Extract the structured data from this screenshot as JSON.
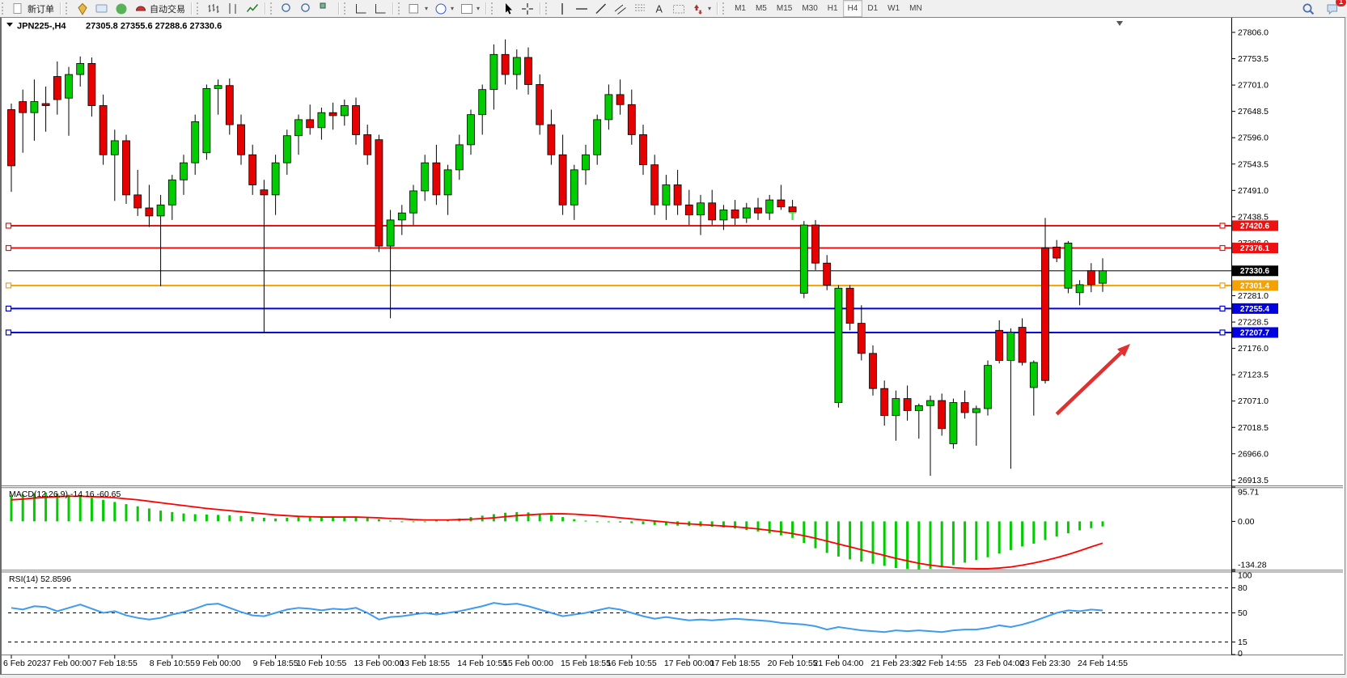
{
  "toolbar": {
    "new_order_label": "新订单",
    "autotrade_label": "自动交易",
    "groups": [
      [
        {
          "name": "new-order-button",
          "icon": "new-order-icon",
          "label_key": "new_order_label"
        }
      ],
      [
        {
          "name": "market-button",
          "icon": "market-icon"
        },
        {
          "name": "community-button",
          "icon": "community-icon"
        },
        {
          "name": "signals-button",
          "icon": "signals-icon"
        },
        {
          "name": "autotrade-button",
          "icon": "autotrade-icon",
          "label_key": "autotrade_label"
        }
      ],
      [
        {
          "name": "bar-chart-button",
          "icon": "bar-chart-icon"
        },
        {
          "name": "candlestick-chart-button",
          "icon": "candle-chart-icon"
        },
        {
          "name": "line-chart-button",
          "icon": "line-chart-icon"
        }
      ],
      [
        {
          "name": "zoom-in-button",
          "icon": "zoom-in-icon"
        },
        {
          "name": "zoom-out-button",
          "icon": "zoom-out-icon"
        },
        {
          "name": "tile-windows-button",
          "icon": "tile-windows-icon"
        }
      ],
      [
        {
          "name": "auto-scroll-button",
          "icon": "auto-scroll-icon"
        },
        {
          "name": "chart-shift-button",
          "icon": "chart-shift-icon"
        }
      ],
      [
        {
          "name": "indicators-button",
          "icon": "indicators-icon",
          "dropdown": true
        },
        {
          "name": "periods-button",
          "icon": "clock-icon",
          "dropdown": true
        },
        {
          "name": "templates-button",
          "icon": "template-icon",
          "dropdown": true
        }
      ],
      [
        {
          "name": "cursor-button",
          "icon": "cursor-icon"
        },
        {
          "name": "crosshair-button",
          "icon": "crosshair-icon"
        }
      ],
      [
        {
          "name": "vertical-line-button",
          "icon": "vertical-line-icon"
        },
        {
          "name": "horizontal-line-button",
          "icon": "horizontal-line-icon"
        },
        {
          "name": "trendline-button",
          "icon": "trendline-icon"
        },
        {
          "name": "channel-button",
          "icon": "channel-icon"
        },
        {
          "name": "fibonacci-button",
          "icon": "fibonacci-icon"
        },
        {
          "name": "text-button",
          "icon": "text-icon"
        },
        {
          "name": "text-label-button",
          "icon": "label-icon"
        },
        {
          "name": "arrows-button",
          "icon": "arrows-icon",
          "dropdown": true
        }
      ]
    ],
    "timeframes": [
      "M1",
      "M5",
      "M15",
      "M30",
      "H1",
      "H4",
      "D1",
      "W1",
      "MN"
    ],
    "active_timeframe": "H4",
    "notification_count": "1"
  },
  "chart": {
    "title_symbol": "JPN225-,H4",
    "title_ohlc": "27305.8 27355.6 27288.6 27330.6"
  },
  "chart_data": {
    "type": "candlestick",
    "symbol": "JPN225-",
    "timeframe": "H4",
    "current": {
      "open": "27305.8",
      "high": "27355.6",
      "low": "27288.6",
      "close": "27330.6"
    },
    "price_axis_ticks": [
      "27806.0",
      "27753.5",
      "27701.0",
      "27648.5",
      "27596.0",
      "27543.5",
      "27491.0",
      "27438.5",
      "27386.0",
      "27281.0",
      "27228.5",
      "27176.0",
      "27123.5",
      "27071.0",
      "27018.5",
      "26966.0",
      "26913.5"
    ],
    "hlines": [
      {
        "price": 27420.6,
        "label": "27420.6",
        "color": "#ee1111",
        "width": 2,
        "anchors": true
      },
      {
        "price": 27376.1,
        "label": "27376.1",
        "color": "#ee1111",
        "width": 2,
        "anchors": true
      },
      {
        "price": 27330.6,
        "label": "27330.6",
        "color": "#000000",
        "width": 1,
        "anchors": false
      },
      {
        "price": 27301.4,
        "label": "27301.4",
        "color": "#f5a100",
        "width": 2,
        "anchors": true
      },
      {
        "price": 27255.4,
        "label": "27255.4",
        "color": "#0000e0",
        "width": 2,
        "anchors": true
      },
      {
        "price": 27207.7,
        "label": "27207.7",
        "color": "#0000e0",
        "width": 2,
        "anchors": true
      }
    ],
    "up_color": "#00cc00",
    "down_color": "#e60000",
    "candles": [
      [
        27652,
        27664,
        27488,
        27540
      ],
      [
        27668,
        27692,
        27566,
        27646
      ],
      [
        27646,
        27712,
        27590,
        27668
      ],
      [
        27664,
        27698,
        27608,
        27660
      ],
      [
        27718,
        27748,
        27642,
        27672
      ],
      [
        27675,
        27737,
        27600,
        27722
      ],
      [
        27722,
        27758,
        27698,
        27744
      ],
      [
        27744,
        27756,
        27638,
        27660
      ],
      [
        27660,
        27682,
        27542,
        27562
      ],
      [
        27562,
        27612,
        27470,
        27590
      ],
      [
        27590,
        27602,
        27464,
        27482
      ],
      [
        27482,
        27532,
        27440,
        27456
      ],
      [
        27456,
        27502,
        27418,
        27440
      ],
      [
        27440,
        27482,
        27300,
        27462
      ],
      [
        27462,
        27522,
        27432,
        27512
      ],
      [
        27512,
        27562,
        27482,
        27546
      ],
      [
        27546,
        27642,
        27522,
        27628
      ],
      [
        27566,
        27702,
        27552,
        27694
      ],
      [
        27694,
        27712,
        27642,
        27700
      ],
      [
        27700,
        27714,
        27602,
        27622
      ],
      [
        27622,
        27642,
        27542,
        27562
      ],
      [
        27562,
        27582,
        27482,
        27502
      ],
      [
        27492,
        27512,
        27206,
        27482
      ],
      [
        27482,
        27562,
        27442,
        27546
      ],
      [
        27546,
        27612,
        27522,
        27600
      ],
      [
        27600,
        27642,
        27562,
        27632
      ],
      [
        27632,
        27662,
        27602,
        27616
      ],
      [
        27616,
        27656,
        27592,
        27646
      ],
      [
        27646,
        27666,
        27612,
        27640
      ],
      [
        27640,
        27672,
        27620,
        27660
      ],
      [
        27660,
        27676,
        27582,
        27602
      ],
      [
        27602,
        27622,
        27542,
        27562
      ],
      [
        27592,
        27602,
        27368,
        27380
      ],
      [
        27380,
        27452,
        27236,
        27432
      ],
      [
        27432,
        27462,
        27402,
        27446
      ],
      [
        27446,
        27502,
        27422,
        27490
      ],
      [
        27490,
        27562,
        27470,
        27546
      ],
      [
        27546,
        27582,
        27462,
        27482
      ],
      [
        27482,
        27542,
        27442,
        27532
      ],
      [
        27532,
        27602,
        27512,
        27582
      ],
      [
        27582,
        27652,
        27562,
        27642
      ],
      [
        27642,
        27702,
        27602,
        27692
      ],
      [
        27692,
        27782,
        27652,
        27762
      ],
      [
        27762,
        27792,
        27702,
        27722
      ],
      [
        27722,
        27772,
        27692,
        27756
      ],
      [
        27756,
        27776,
        27682,
        27702
      ],
      [
        27702,
        27722,
        27602,
        27622
      ],
      [
        27622,
        27652,
        27542,
        27562
      ],
      [
        27562,
        27602,
        27442,
        27462
      ],
      [
        27462,
        27542,
        27432,
        27532
      ],
      [
        27532,
        27582,
        27502,
        27562
      ],
      [
        27562,
        27642,
        27542,
        27632
      ],
      [
        27632,
        27702,
        27612,
        27682
      ],
      [
        27682,
        27712,
        27642,
        27662
      ],
      [
        27662,
        27692,
        27582,
        27602
      ],
      [
        27602,
        27622,
        27522,
        27542
      ],
      [
        27542,
        27562,
        27442,
        27462
      ],
      [
        27462,
        27522,
        27432,
        27502
      ],
      [
        27502,
        27532,
        27442,
        27462
      ],
      [
        27462,
        27492,
        27422,
        27442
      ],
      [
        27442,
        27482,
        27402,
        27466
      ],
      [
        27466,
        27492,
        27422,
        27432
      ],
      [
        27432,
        27462,
        27412,
        27452
      ],
      [
        27452,
        27472,
        27422,
        27436
      ],
      [
        27436,
        27466,
        27426,
        27456
      ],
      [
        27456,
        27476,
        27432,
        27446
      ],
      [
        27446,
        27482,
        27432,
        27472
      ],
      [
        27472,
        27502,
        27452,
        27458
      ],
      [
        27458,
        27472,
        27438,
        27448
      ],
      [
        27286,
        27430,
        27276,
        27422
      ],
      [
        27422,
        27432,
        27332,
        27346
      ],
      [
        27346,
        27362,
        27292,
        27302
      ],
      [
        27068,
        27302,
        27058,
        27296
      ],
      [
        27296,
        27302,
        27212,
        27226
      ],
      [
        27226,
        27262,
        27152,
        27166
      ],
      [
        27166,
        27182,
        27082,
        27096
      ],
      [
        27096,
        27112,
        27022,
        27042
      ],
      [
        27042,
        27092,
        26992,
        27076
      ],
      [
        27076,
        27102,
        27032,
        27052
      ],
      [
        27052,
        27066,
        26996,
        27062
      ],
      [
        27062,
        27082,
        26922,
        27072
      ],
      [
        27072,
        27086,
        27002,
        27016
      ],
      [
        26986,
        27076,
        26976,
        27068
      ],
      [
        27068,
        27092,
        27036,
        27048
      ],
      [
        27048,
        27062,
        26982,
        27056
      ],
      [
        27056,
        27152,
        27042,
        27142
      ],
      [
        27212,
        27232,
        27146,
        27152
      ],
      [
        27152,
        27216,
        26936,
        27208
      ],
      [
        27218,
        27236,
        27142,
        27148
      ],
      [
        27098,
        27152,
        27042,
        27148
      ],
      [
        27376,
        27436,
        27106,
        27112
      ],
      [
        27378,
        27392,
        27348,
        27356
      ],
      [
        27296,
        27390,
        27286,
        27386
      ],
      [
        27287,
        27312,
        27262,
        27303
      ],
      [
        27331,
        27346,
        27288,
        27303
      ],
      [
        27305.8,
        27355.6,
        27288.6,
        27330.6
      ]
    ],
    "time_labels": [
      [
        "6 Feb 2023",
        0
      ],
      [
        "7 Feb 00:00",
        5
      ],
      [
        "7 Feb 18:55",
        9
      ],
      [
        "8 Feb 10:55",
        14
      ],
      [
        "9 Feb 00:00",
        18
      ],
      [
        "9 Feb 18:55",
        23
      ],
      [
        "10 Feb 10:55",
        27
      ],
      [
        "13 Feb 00:00",
        32
      ],
      [
        "13 Feb 18:55",
        36
      ],
      [
        "14 Feb 10:55",
        41
      ],
      [
        "15 Feb 00:00",
        45
      ],
      [
        "15 Feb 18:55",
        50
      ],
      [
        "16 Feb 10:55",
        54
      ],
      [
        "17 Feb 00:00",
        59
      ],
      [
        "17 Feb 18:55",
        63
      ],
      [
        "20 Feb 10:55",
        68
      ],
      [
        "21 Feb 04:00",
        72
      ],
      [
        "21 Feb 23:30",
        77
      ],
      [
        "22 Feb 14:55",
        81
      ],
      [
        "23 Feb 04:00",
        86
      ],
      [
        "23 Feb 23:30",
        90
      ],
      [
        "24 Feb 14:55",
        95
      ]
    ],
    "macd": {
      "label": "MACD(12,26,9) -14.16 -60.65",
      "main_value": "-14.16",
      "signal_value": "-60.65",
      "axis_labels": [
        "95.71",
        "0.00",
        "-134.28"
      ],
      "axis_values": [
        95.71,
        0,
        -134.28
      ],
      "hist_color": "#00cc00",
      "signal_color": "#ff0000",
      "histogram": [
        72,
        75,
        78,
        80,
        78,
        74,
        70,
        66,
        60,
        54,
        48,
        42,
        36,
        30,
        26,
        22,
        20,
        19,
        18,
        17,
        15,
        12,
        10,
        8,
        10,
        12,
        13,
        14,
        14,
        13,
        12,
        10,
        6,
        2,
        0,
        -1,
        0,
        2,
        5,
        8,
        12,
        16,
        20,
        24,
        26,
        25,
        22,
        18,
        12,
        6,
        2,
        0,
        -2,
        -3,
        -5,
        -8,
        -10,
        -11,
        -12,
        -13,
        -14,
        -15,
        -17,
        -20,
        -24,
        -28,
        -33,
        -39,
        -46,
        -60,
        -75,
        -88,
        -98,
        -106,
        -112,
        -118,
        -124,
        -130,
        -133,
        -134,
        -132,
        -128,
        -122,
        -115,
        -108,
        -100,
        -90,
        -80,
        -70,
        -62,
        -52,
        -42,
        -33,
        -25,
        -19,
        -14.16
      ],
      "signal": [
        60,
        62,
        65,
        67,
        69,
        70,
        70,
        69,
        68,
        66,
        63,
        60,
        56,
        52,
        48,
        44,
        40,
        36,
        33,
        30,
        27,
        24,
        21,
        18,
        16,
        14,
        13,
        12,
        12,
        12,
        12,
        11,
        10,
        8,
        7,
        5,
        4,
        4,
        4,
        5,
        6,
        8,
        10,
        13,
        16,
        18,
        20,
        21,
        21,
        20,
        18,
        16,
        13,
        10,
        7,
        4,
        1,
        -2,
        -5,
        -7,
        -9,
        -11,
        -13,
        -15,
        -18,
        -21,
        -25,
        -29,
        -34,
        -40,
        -47,
        -55,
        -63,
        -71,
        -79,
        -87,
        -95,
        -103,
        -110,
        -117,
        -122,
        -126,
        -129,
        -131,
        -132,
        -132,
        -130,
        -127,
        -122,
        -116,
        -109,
        -101,
        -92,
        -82,
        -71,
        -60.65
      ]
    },
    "rsi": {
      "label": "RSI(14) 52.8596",
      "value": "52.8596",
      "axis_labels": [
        "100",
        "80",
        "50",
        "15",
        "0"
      ],
      "levels": [
        80,
        50,
        15
      ],
      "color": "#3e9bef",
      "values": [
        56,
        54,
        58,
        57,
        52,
        56,
        60,
        55,
        50,
        52,
        47,
        44,
        42,
        44,
        48,
        51,
        55,
        60,
        61,
        56,
        51,
        47,
        46,
        50,
        54,
        56,
        55,
        53,
        55,
        54,
        56,
        50,
        42,
        45,
        46,
        48,
        50,
        48,
        50,
        52,
        55,
        58,
        62,
        60,
        61,
        58,
        54,
        50,
        46,
        48,
        50,
        53,
        56,
        54,
        50,
        46,
        43,
        45,
        43,
        41,
        42,
        41,
        42,
        43,
        42,
        41,
        40,
        38,
        37,
        36,
        34,
        30,
        33,
        31,
        29,
        28,
        27,
        29,
        28,
        29,
        28,
        27,
        29,
        30,
        30,
        32,
        35,
        33,
        36,
        40,
        45,
        50,
        53,
        52,
        54,
        52.8596
      ]
    },
    "annotations": {
      "t_marker": {
        "text": "T",
        "color": "#44dd44",
        "i": 68,
        "price": 27432
      },
      "trend_arrow": {
        "color": "#e03030",
        "from_i": 91,
        "from_price": 27045,
        "to_i": 97.4,
        "to_price": 27185
      }
    }
  }
}
